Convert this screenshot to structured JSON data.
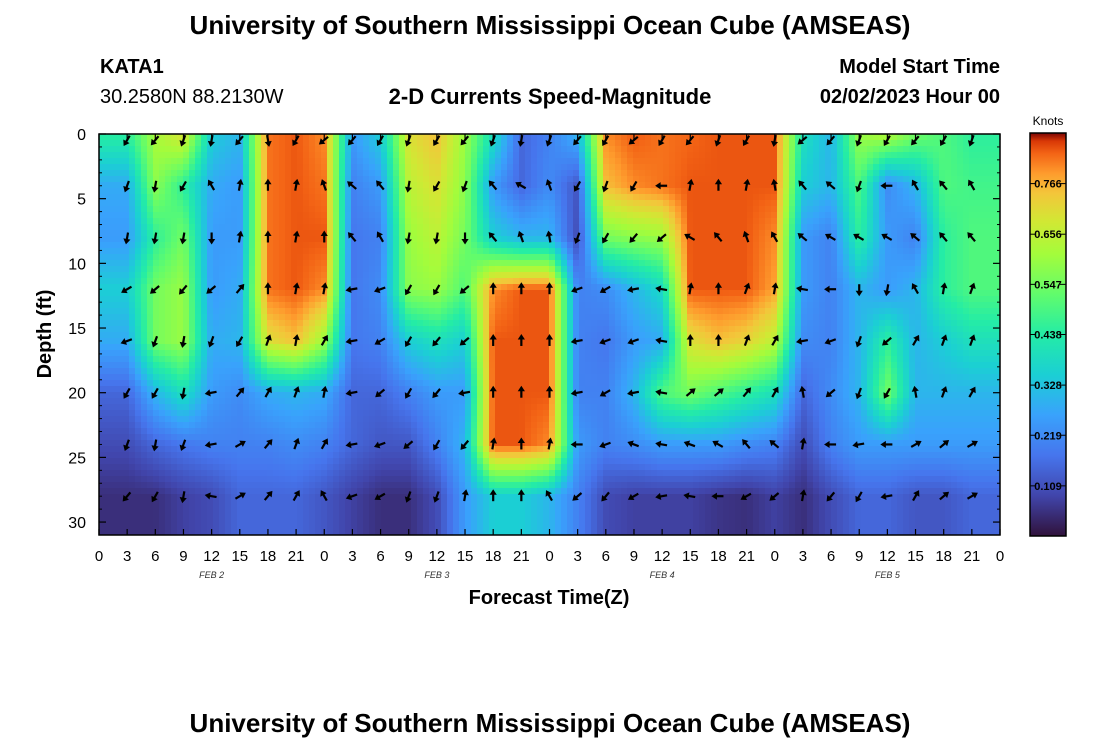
{
  "header": {
    "title": "University of Southern Mississippi Ocean Cube (AMSEAS)",
    "station": "KATA1",
    "coordinates": "30.2580N  88.2130W",
    "subtitle": "2-D Currents Speed-Magnitude",
    "model_start_label": "Model Start Time",
    "model_start_value": "02/02/2023 Hour 00"
  },
  "footer": {
    "title": "University of Southern Mississippi Ocean Cube (AMSEAS)"
  },
  "chart_data": {
    "type": "heatmap",
    "title": "2-D Currents Speed-Magnitude",
    "xlabel": "Forecast Time(Z)",
    "ylabel": "Depth (ft)",
    "x_tick_labels": [
      "0",
      "3",
      "6",
      "9",
      "12",
      "15",
      "18",
      "21",
      "0",
      "3",
      "6",
      "9",
      "12",
      "15",
      "18",
      "21",
      "0",
      "3",
      "6",
      "9",
      "12",
      "15",
      "18",
      "21",
      "0",
      "3",
      "6",
      "9",
      "12",
      "15",
      "18",
      "21",
      "0"
    ],
    "date_labels": [
      {
        "label": "FEB 2",
        "hour": 12
      },
      {
        "label": "FEB 3",
        "hour": 36
      },
      {
        "label": "FEB 4",
        "hour": 60
      },
      {
        "label": "FEB 5",
        "hour": 84
      }
    ],
    "xlim_hours": [
      0,
      96
    ],
    "ylim_depth_ft": [
      0,
      31
    ],
    "y_ticks": [
      0,
      5,
      10,
      15,
      20,
      25,
      30
    ],
    "colorbar": {
      "label": "Knots",
      "min": 0.0,
      "max": 0.876,
      "ticks": [
        "0.766",
        "0.656",
        "0.547",
        "0.438",
        "0.328",
        "0.219",
        "0.109"
      ],
      "tick_values": [
        0.766,
        0.656,
        0.547,
        0.438,
        0.328,
        0.219,
        0.109
      ]
    },
    "arrow_hours": [
      3,
      6,
      9,
      12,
      15,
      18,
      21,
      24,
      27,
      30,
      33,
      36,
      39,
      42,
      45,
      48,
      51,
      54,
      57,
      60,
      63,
      66,
      69,
      72,
      75,
      78,
      81,
      84,
      87,
      90,
      93
    ],
    "depths_ft": [
      0,
      4,
      8,
      12,
      16,
      20,
      24,
      28
    ],
    "speed_knots": [
      [
        0.45,
        0.62,
        0.7,
        0.35,
        0.3,
        0.82,
        0.84,
        0.8,
        0.25,
        0.35,
        0.7,
        0.75,
        0.6,
        0.4,
        0.15,
        0.2,
        0.3,
        0.8,
        0.84,
        0.82,
        0.83,
        0.84,
        0.84,
        0.84,
        0.4,
        0.3,
        0.6,
        0.64,
        0.55,
        0.5,
        0.45
      ],
      [
        0.28,
        0.58,
        0.45,
        0.28,
        0.25,
        0.82,
        0.84,
        0.82,
        0.2,
        0.25,
        0.65,
        0.7,
        0.58,
        0.25,
        0.15,
        0.22,
        0.12,
        0.75,
        0.8,
        0.82,
        0.84,
        0.84,
        0.84,
        0.84,
        0.35,
        0.3,
        0.5,
        0.22,
        0.3,
        0.5,
        0.48
      ],
      [
        0.25,
        0.45,
        0.55,
        0.25,
        0.25,
        0.82,
        0.84,
        0.84,
        0.18,
        0.2,
        0.6,
        0.65,
        0.55,
        0.35,
        0.3,
        0.3,
        0.1,
        0.55,
        0.58,
        0.6,
        0.84,
        0.84,
        0.84,
        0.8,
        0.25,
        0.2,
        0.45,
        0.25,
        0.2,
        0.45,
        0.5
      ],
      [
        0.35,
        0.55,
        0.6,
        0.25,
        0.28,
        0.82,
        0.84,
        0.8,
        0.18,
        0.22,
        0.58,
        0.6,
        0.5,
        0.8,
        0.84,
        0.84,
        0.2,
        0.22,
        0.3,
        0.38,
        0.84,
        0.84,
        0.84,
        0.78,
        0.25,
        0.2,
        0.3,
        0.25,
        0.3,
        0.45,
        0.5
      ],
      [
        0.28,
        0.55,
        0.6,
        0.28,
        0.3,
        0.7,
        0.75,
        0.6,
        0.18,
        0.2,
        0.35,
        0.4,
        0.35,
        0.84,
        0.84,
        0.84,
        0.2,
        0.18,
        0.25,
        0.28,
        0.7,
        0.75,
        0.72,
        0.65,
        0.22,
        0.2,
        0.3,
        0.45,
        0.3,
        0.35,
        0.4
      ],
      [
        0.15,
        0.3,
        0.4,
        0.25,
        0.22,
        0.28,
        0.3,
        0.28,
        0.15,
        0.15,
        0.2,
        0.25,
        0.25,
        0.84,
        0.84,
        0.84,
        0.2,
        0.2,
        0.3,
        0.5,
        0.55,
        0.5,
        0.45,
        0.4,
        0.15,
        0.22,
        0.3,
        0.55,
        0.3,
        0.3,
        0.3
      ],
      [
        0.1,
        0.15,
        0.18,
        0.2,
        0.2,
        0.2,
        0.22,
        0.2,
        0.15,
        0.12,
        0.12,
        0.2,
        0.3,
        0.84,
        0.84,
        0.8,
        0.25,
        0.2,
        0.22,
        0.25,
        0.25,
        0.25,
        0.22,
        0.2,
        0.1,
        0.2,
        0.25,
        0.25,
        0.25,
        0.25,
        0.25
      ],
      [
        0.05,
        0.05,
        0.08,
        0.1,
        0.15,
        0.15,
        0.15,
        0.12,
        0.08,
        0.05,
        0.05,
        0.1,
        0.25,
        0.35,
        0.35,
        0.3,
        0.2,
        0.1,
        0.08,
        0.08,
        0.08,
        0.06,
        0.05,
        0.08,
        0.05,
        0.1,
        0.15,
        0.15,
        0.12,
        0.12,
        0.15
      ]
    ],
    "direction_deg": [
      [
        -150,
        -140,
        -160,
        -170,
        -140,
        170,
        -150,
        -130,
        -140,
        -150,
        -160,
        -150,
        -140,
        -160,
        -170,
        -160,
        -140,
        -150,
        -130,
        -150,
        -140,
        -160,
        -150,
        -170,
        -130,
        -140,
        -160,
        -150,
        -140,
        -150,
        -160
      ],
      [
        -160,
        -170,
        -150,
        -30,
        10,
        0,
        10,
        -20,
        -50,
        -40,
        -170,
        -150,
        -160,
        -40,
        -60,
        -20,
        -150,
        -160,
        -150,
        -90,
        10,
        0,
        10,
        -10,
        -40,
        -50,
        -160,
        -90,
        -30,
        -40,
        -30
      ],
      [
        -170,
        -170,
        -170,
        -180,
        10,
        0,
        10,
        0,
        -40,
        -30,
        -170,
        -170,
        -180,
        -40,
        -20,
        -10,
        -160,
        -150,
        -140,
        -130,
        -60,
        -40,
        -20,
        -30,
        -50,
        -60,
        -60,
        -60,
        -50,
        -40,
        -40
      ],
      [
        -120,
        -130,
        -140,
        -130,
        40,
        0,
        10,
        10,
        -100,
        -110,
        -150,
        -150,
        -130,
        0,
        0,
        0,
        -110,
        -120,
        -100,
        -80,
        10,
        0,
        20,
        10,
        -80,
        -90,
        180,
        -170,
        -30,
        10,
        20
      ],
      [
        -110,
        -160,
        -170,
        -160,
        -150,
        20,
        10,
        30,
        -100,
        -120,
        -150,
        -140,
        -130,
        0,
        0,
        0,
        -100,
        -110,
        -110,
        -80,
        0,
        0,
        20,
        30,
        -100,
        -110,
        -160,
        -130,
        30,
        20,
        20
      ],
      [
        -150,
        -150,
        -170,
        -100,
        40,
        30,
        20,
        10,
        -100,
        -130,
        -150,
        -140,
        -100,
        0,
        0,
        0,
        -100,
        -120,
        -100,
        -80,
        50,
        50,
        40,
        30,
        -10,
        -130,
        -160,
        -150,
        -10,
        20,
        30
      ],
      [
        -160,
        -170,
        -160,
        -100,
        60,
        40,
        20,
        30,
        -100,
        -110,
        -130,
        -150,
        -140,
        10,
        0,
        10,
        -90,
        -110,
        -70,
        -80,
        -70,
        -60,
        -40,
        -50,
        10,
        -90,
        -100,
        -90,
        60,
        50,
        60
      ],
      [
        -140,
        -150,
        -170,
        -80,
        60,
        40,
        30,
        -30,
        -110,
        -120,
        -160,
        -160,
        10,
        0,
        0,
        -30,
        -130,
        -140,
        -120,
        -100,
        -80,
        -90,
        -120,
        -130,
        10,
        -140,
        -150,
        -100,
        30,
        50,
        60
      ]
    ]
  }
}
